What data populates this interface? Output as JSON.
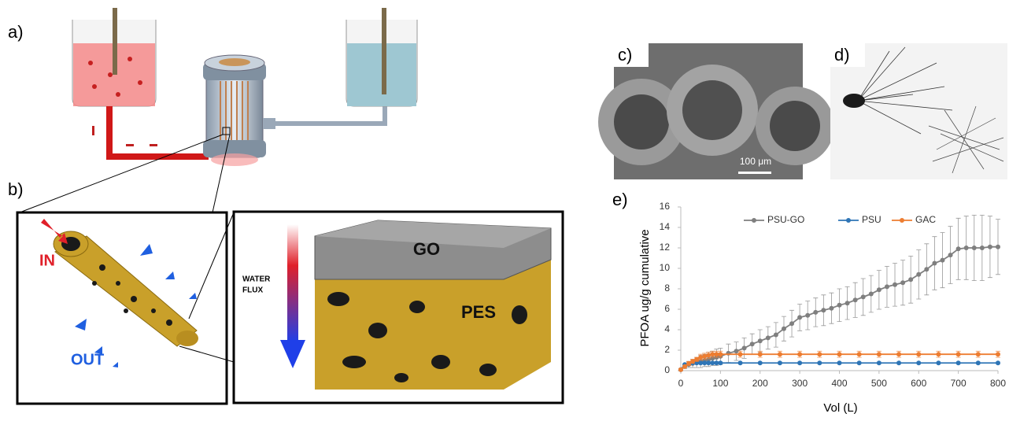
{
  "panels": {
    "a": {
      "label": "a)"
    },
    "b": {
      "label": "b)",
      "in_label": "IN",
      "out_label": "OUT",
      "flux_label_1": "WATER",
      "flux_label_2": "FLUX",
      "top_layer": "GO",
      "bottom_layer": "PES"
    },
    "c": {
      "label": "c)",
      "scale_bar": "100 μm"
    },
    "d": {
      "label": "d)"
    },
    "e": {
      "label": "e)"
    }
  },
  "chart_data": {
    "type": "line",
    "ylabel": "PFOA ug/g  cumulative",
    "xlabel": "Vol (L)",
    "xlim": [
      0,
      800
    ],
    "xticks": [
      0,
      100,
      200,
      300,
      400,
      500,
      600,
      700,
      800
    ],
    "ylim": [
      0,
      16
    ],
    "yticks": [
      0,
      2,
      4,
      6,
      8,
      10,
      12,
      14,
      16
    ],
    "legend": "top",
    "series": [
      {
        "name": "PSU-GO",
        "color": "#7f7f7f",
        "x": [
          0,
          10,
          20,
          30,
          40,
          50,
          60,
          70,
          80,
          90,
          100,
          120,
          140,
          160,
          180,
          200,
          220,
          240,
          260,
          280,
          300,
          320,
          340,
          360,
          380,
          400,
          420,
          440,
          460,
          480,
          500,
          520,
          540,
          560,
          580,
          600,
          620,
          640,
          660,
          680,
          700,
          720,
          740,
          760,
          780,
          800
        ],
        "values": [
          0.1,
          0.4,
          0.6,
          0.7,
          0.8,
          0.9,
          1.0,
          1.1,
          1.2,
          1.3,
          1.4,
          1.7,
          1.9,
          2.2,
          2.6,
          2.9,
          3.2,
          3.5,
          4.1,
          4.6,
          5.2,
          5.4,
          5.7,
          5.9,
          6.1,
          6.4,
          6.6,
          6.9,
          7.2,
          7.5,
          7.9,
          8.2,
          8.4,
          8.6,
          8.9,
          9.4,
          9.9,
          10.5,
          10.8,
          11.3,
          11.9,
          12.0,
          12.0,
          12.0,
          12.1,
          12.1
        ],
        "errors": [
          0.1,
          0.2,
          0.3,
          0.4,
          0.5,
          0.6,
          0.6,
          0.7,
          0.7,
          0.8,
          0.8,
          0.9,
          0.9,
          1.0,
          1.0,
          1.1,
          1.1,
          1.2,
          1.2,
          1.3,
          1.3,
          1.4,
          1.4,
          1.5,
          1.5,
          1.6,
          1.6,
          1.7,
          1.8,
          1.8,
          1.9,
          2.0,
          2.1,
          2.2,
          2.3,
          2.4,
          2.5,
          2.6,
          2.7,
          2.8,
          3.0,
          3.1,
          3.2,
          3.2,
          3.0,
          2.7
        ]
      },
      {
        "name": "PSU",
        "color": "#2e75b6",
        "x": [
          0,
          10,
          20,
          30,
          40,
          50,
          60,
          70,
          80,
          90,
          100,
          150,
          200,
          250,
          300,
          350,
          400,
          450,
          500,
          550,
          600,
          650,
          700,
          750,
          800
        ],
        "values": [
          0.1,
          0.6,
          0.7,
          0.75,
          0.75,
          0.75,
          0.75,
          0.75,
          0.75,
          0.75,
          0.75,
          0.75,
          0.75,
          0.75,
          0.75,
          0.75,
          0.75,
          0.75,
          0.75,
          0.75,
          0.75,
          0.75,
          0.75,
          0.75,
          0.75
        ]
      },
      {
        "name": "GAC",
        "color": "#ed7d31",
        "x": [
          0,
          10,
          20,
          30,
          40,
          50,
          60,
          70,
          80,
          90,
          100,
          150,
          200,
          250,
          300,
          350,
          400,
          450,
          500,
          550,
          600,
          650,
          700,
          750,
          800
        ],
        "values": [
          0.1,
          0.4,
          0.7,
          0.9,
          1.1,
          1.3,
          1.4,
          1.5,
          1.6,
          1.6,
          1.6,
          1.6,
          1.6,
          1.6,
          1.6,
          1.6,
          1.6,
          1.6,
          1.6,
          1.6,
          1.6,
          1.6,
          1.6,
          1.6,
          1.6
        ],
        "errors": [
          0.1,
          0.1,
          0.2,
          0.2,
          0.2,
          0.3,
          0.3,
          0.3,
          0.3,
          0.3,
          0.3,
          0.3,
          0.3,
          0.3,
          0.3,
          0.3,
          0.3,
          0.3,
          0.3,
          0.3,
          0.3,
          0.3,
          0.3,
          0.3,
          0.3
        ]
      }
    ]
  }
}
